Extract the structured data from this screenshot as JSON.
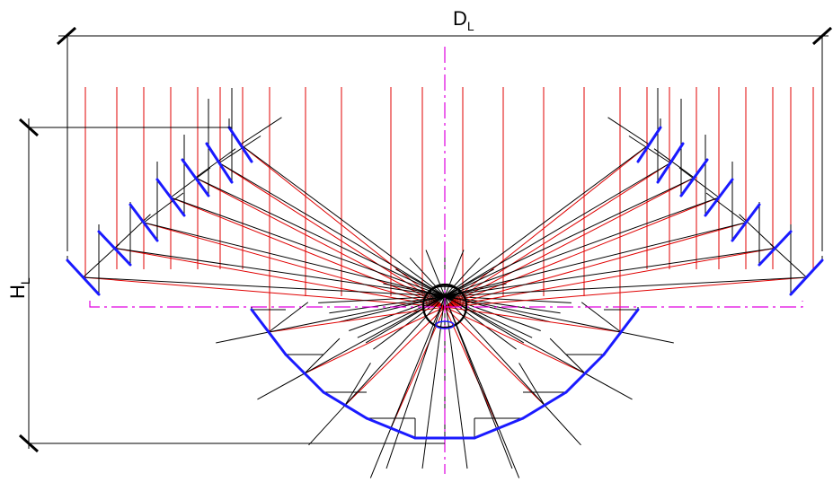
{
  "labels": {
    "width_main": "D",
    "width_sub": "L",
    "height_main": "H",
    "height_sub": "L"
  },
  "colors": {
    "incident_rays": "#e00000",
    "reflected_rays": "#000000",
    "mirror_facets": "#1a1aff",
    "center_axis": "#e000e0",
    "dimension_lines": "#000000"
  },
  "icons": {
    "dimension_tick": "slash-tick",
    "receiver": "receiver-circle"
  }
}
